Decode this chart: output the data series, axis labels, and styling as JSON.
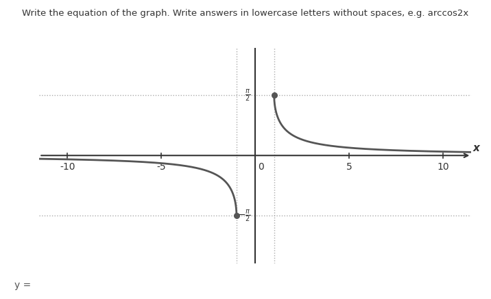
{
  "title": "Write the equation of the graph. Write answers in lowercase letters without spaces, e.g. arccos2x",
  "xlabel": "x",
  "xlim": [
    -11.5,
    11.5
  ],
  "ylim": [
    -2.8,
    2.8
  ],
  "xticks": [
    -10,
    -5,
    0,
    5,
    10
  ],
  "pi2": 1.5707963267948966,
  "dashed_hline_y": [
    1.5707963267948966,
    -1.5707963267948966
  ],
  "dashed_vline_x": [
    -1,
    1
  ],
  "dot_points": [
    [
      1,
      1.5707963267948966
    ],
    [
      -1,
      -1.5707963267948966
    ]
  ],
  "curve_color": "#555555",
  "axis_color": "#333333",
  "dashed_color": "#aaaaaa",
  "bg_color": "#ffffff",
  "answer_label": "y =",
  "title_fontsize": 9.5,
  "tick_fontsize": 10
}
